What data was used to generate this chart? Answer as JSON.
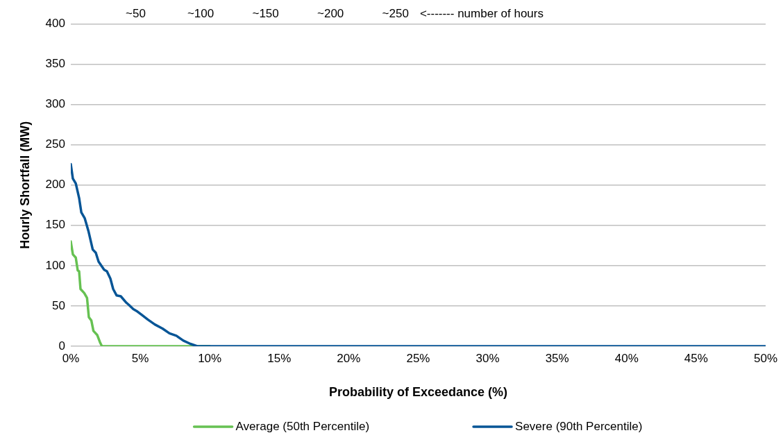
{
  "chart_data": {
    "type": "line",
    "xlabel": "Probability of Exceedance (%)",
    "ylabel": "Hourly Shortfall (MW)",
    "x2label": "<------- number of hours",
    "xlim": [
      0,
      50
    ],
    "xticks": [
      {
        "value": 0,
        "label": "0%"
      },
      {
        "value": 5,
        "label": "5%"
      },
      {
        "value": 10,
        "label": "10%"
      },
      {
        "value": 15,
        "label": "15%"
      },
      {
        "value": 20,
        "label": "20%"
      },
      {
        "value": 25,
        "label": "25%"
      },
      {
        "value": 30,
        "label": "30%"
      },
      {
        "value": 35,
        "label": "35%"
      },
      {
        "value": 40,
        "label": "40%"
      },
      {
        "value": 45,
        "label": "45%"
      },
      {
        "value": 50,
        "label": "50%"
      }
    ],
    "x2lim": [
      0,
      535
    ],
    "x2ticks": [
      {
        "value": 50,
        "label": "~50"
      },
      {
        "value": 100,
        "label": "~100"
      },
      {
        "value": 150,
        "label": "~150"
      },
      {
        "value": 200,
        "label": "~200"
      },
      {
        "value": 250,
        "label": "~250"
      }
    ],
    "ylim": [
      0,
      400
    ],
    "yticks": [
      0,
      50,
      100,
      150,
      200,
      250,
      300,
      350,
      400
    ],
    "grid": "y",
    "legend": "bottom",
    "marker": "none",
    "line_style": "solid",
    "series": [
      {
        "name": "Average (50th Percentile)",
        "color": "#66c152",
        "x": [
          0,
          0.15,
          0.36,
          0.5,
          0.6,
          0.7,
          0.97,
          1.17,
          1.3,
          1.48,
          1.63,
          1.9,
          2.1,
          2.24,
          10
        ],
        "values": [
          130,
          114,
          110,
          94,
          93,
          71,
          66,
          60,
          36,
          32,
          19,
          14,
          5,
          0,
          0
        ]
      },
      {
        "name": "Severe (90th Percentile)",
        "color": "#075596",
        "x": [
          0,
          0.15,
          0.36,
          0.6,
          0.76,
          1.0,
          1.27,
          1.58,
          1.8,
          2.0,
          2.4,
          2.6,
          2.85,
          3.05,
          3.3,
          3.6,
          4.0,
          4.2,
          4.5,
          4.8,
          5.1,
          5.55,
          6.05,
          6.6,
          7.1,
          7.6,
          8.1,
          8.6,
          9.1,
          10,
          50
        ],
        "values": [
          226,
          208,
          202,
          184,
          166,
          159,
          143,
          120,
          116,
          105,
          95,
          93,
          84,
          71,
          63,
          62,
          54,
          51,
          46,
          43,
          39,
          33,
          27,
          22,
          16,
          13,
          7,
          3,
          0,
          0,
          0
        ]
      }
    ]
  }
}
